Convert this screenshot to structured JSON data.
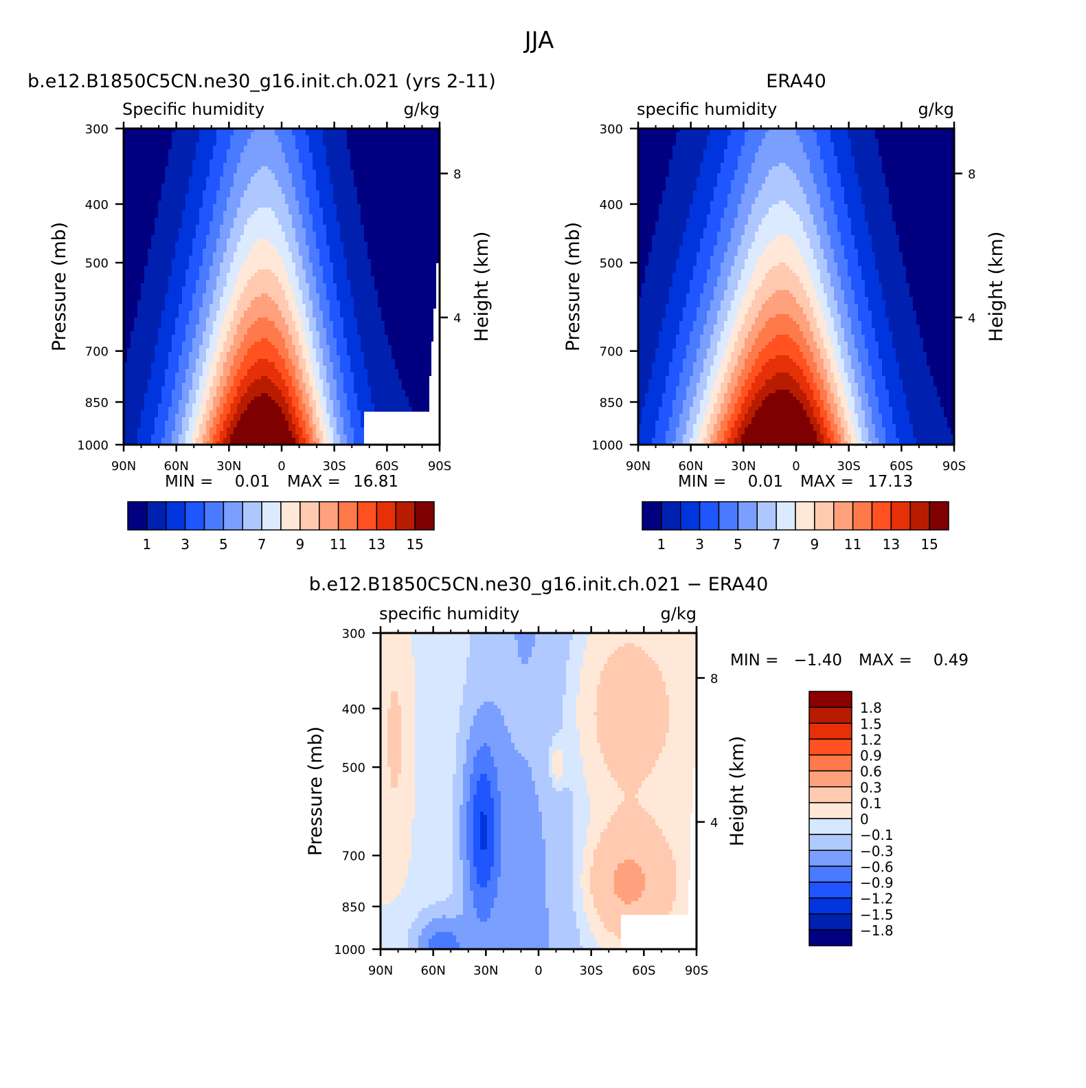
{
  "figure_title": "JJA",
  "colors": {
    "abs_scale": [
      "#000080",
      "#0020b0",
      "#0035dd",
      "#1f56ff",
      "#4a7aff",
      "#7a9fff",
      "#aec7ff",
      "#dbeaff",
      "#ffe8d8",
      "#ffcab0",
      "#ffa17c",
      "#ff7a4a",
      "#ff5220",
      "#e63008",
      "#b81c00",
      "#7f0000"
    ],
    "diff_scale": [
      "#000080",
      "#0020b0",
      "#0035dd",
      "#1f56ff",
      "#4a7aff",
      "#7a9fff",
      "#b0c9ff",
      "#d7e7ff",
      "#ffe8d8",
      "#ffcab0",
      "#ffa17c",
      "#ff7a4a",
      "#ff5220",
      "#e63008",
      "#b81c00",
      "#8b0000"
    ],
    "missing": "#ffffff"
  },
  "chart_data": [
    {
      "id": "model",
      "type": "contour",
      "title": "b.e12.B1850C5CN.ne30_g16.init.ch.021 (yrs 2-11)",
      "left_label": "Specific humidity",
      "right_label": "g/kg",
      "ylabel": "Pressure (mb)",
      "ylabel_right": "Height (km)",
      "x_ticks": [
        "90N",
        "60N",
        "30N",
        "0",
        "30S",
        "60S",
        "90S"
      ],
      "y_ticks": [
        "300",
        "400",
        "500",
        "700",
        "850",
        "1000"
      ],
      "y_ticks_values": [
        300,
        400,
        500,
        700,
        850,
        1000
      ],
      "ylim": [
        300,
        1000
      ],
      "right_ticks": [
        "8",
        "4"
      ],
      "min_label": "MIN =",
      "min_value": "0.01",
      "max_label": "MAX =",
      "max_value": "16.81",
      "colorbar_levels": [
        1,
        2,
        3,
        4,
        5,
        6,
        7,
        8,
        9,
        10,
        11,
        12,
        13,
        14,
        15
      ],
      "colorbar_tick_labels": [
        "1",
        "3",
        "5",
        "7",
        "9",
        "11",
        "13",
        "15"
      ],
      "peak_value": 16.81
    },
    {
      "id": "obs",
      "type": "contour",
      "title": "ERA40",
      "left_label": "specific humidity",
      "right_label": "g/kg",
      "ylabel": "Pressure (mb)",
      "ylabel_right": "Height (km)",
      "x_ticks": [
        "90N",
        "60N",
        "30N",
        "0",
        "30S",
        "60S",
        "90S"
      ],
      "y_ticks": [
        "300",
        "400",
        "500",
        "700",
        "850",
        "1000"
      ],
      "y_ticks_values": [
        300,
        400,
        500,
        700,
        850,
        1000
      ],
      "ylim": [
        300,
        1000
      ],
      "right_ticks": [
        "8",
        "4"
      ],
      "min_label": "MIN =",
      "min_value": "0.01",
      "max_label": "MAX =",
      "max_value": "17.13",
      "colorbar_levels": [
        1,
        2,
        3,
        4,
        5,
        6,
        7,
        8,
        9,
        10,
        11,
        12,
        13,
        14,
        15
      ],
      "colorbar_tick_labels": [
        "1",
        "3",
        "5",
        "7",
        "9",
        "11",
        "13",
        "15"
      ],
      "peak_value": 17.13
    },
    {
      "id": "diff",
      "type": "contour",
      "title": "b.e12.B1850C5CN.ne30_g16.init.ch.021 − ERA40",
      "left_label": "specific humidity",
      "right_label": "g/kg",
      "ylabel": "Pressure (mb)",
      "ylabel_right": "Height (km)",
      "x_ticks": [
        "90N",
        "60N",
        "30N",
        "0",
        "30S",
        "60S",
        "90S"
      ],
      "y_ticks": [
        "300",
        "400",
        "500",
        "700",
        "850",
        "1000"
      ],
      "y_ticks_values": [
        300,
        400,
        500,
        700,
        850,
        1000
      ],
      "ylim": [
        300,
        1000
      ],
      "right_ticks": [
        "8",
        "4"
      ],
      "min_label": "MIN =",
      "min_value": "−1.40",
      "max_label": "MAX =",
      "max_value": "0.49",
      "colorbar_levels": [
        -1.8,
        -1.5,
        -1.2,
        -0.9,
        -0.6,
        -0.3,
        -0.1,
        0,
        0.1,
        0.3,
        0.6,
        0.9,
        1.2,
        1.5,
        1.8
      ],
      "colorbar_tick_labels": [
        "1.8",
        "1.5",
        "1.2",
        "0.9",
        "0.6",
        "0.3",
        "0.1",
        "0",
        "−0.1",
        "−0.3",
        "−0.6",
        "−0.9",
        "−1.2",
        "−1.5",
        "−1.8"
      ]
    }
  ]
}
